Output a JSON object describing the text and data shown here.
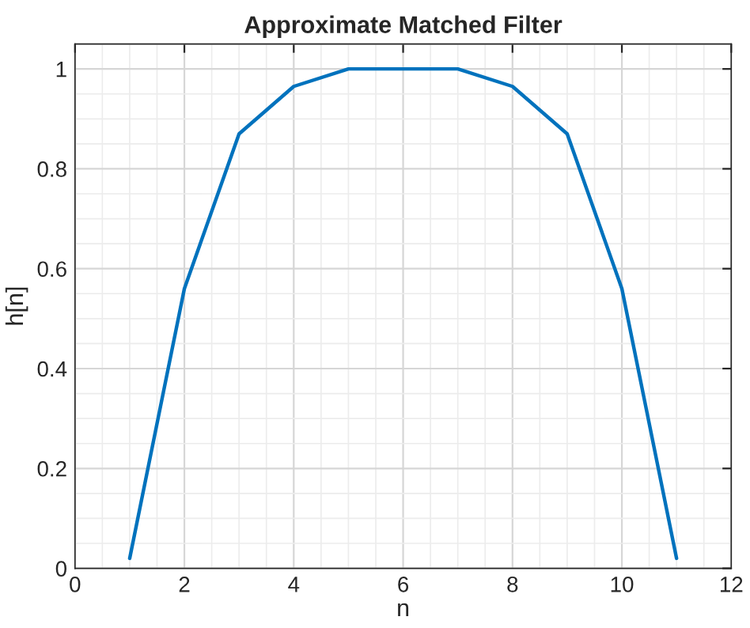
{
  "chart_data": {
    "type": "line",
    "title": "Approximate Matched Filter",
    "xlabel": "n",
    "ylabel": "h[n]",
    "x": [
      1,
      2,
      3,
      4,
      5,
      6,
      7,
      8,
      9,
      10,
      11
    ],
    "series": [
      {
        "color": "#0072bd",
        "values": [
          0.02,
          0.56,
          0.87,
          0.965,
          1,
          1,
          1,
          0.965,
          0.87,
          0.56,
          0.02
        ]
      }
    ],
    "xlim": [
      0,
      12
    ],
    "xticks": [
      0,
      2,
      4,
      6,
      8,
      10,
      12
    ],
    "ylim": [
      0,
      1.05
    ],
    "yticks": [
      0,
      0.2,
      0.4,
      0.6,
      0.8,
      1
    ],
    "grid": true,
    "marker": "none",
    "line_style": "solid"
  }
}
